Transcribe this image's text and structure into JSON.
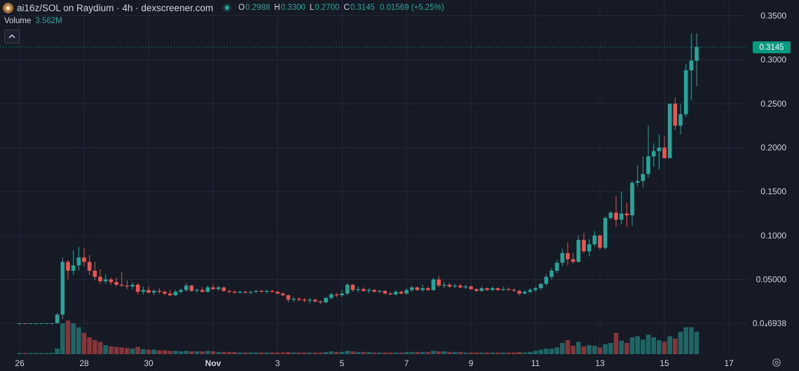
{
  "header": {
    "pair_label": "ai16z/SOL on Raydium · 4h · dexscreener.com",
    "o_label": "O",
    "o_value": "0.2988",
    "h_label": "H",
    "h_value": "0.3300",
    "l_label": "L",
    "l_value": "0.2700",
    "c_label": "C",
    "c_value": "0.3145",
    "change": "0.01569 (+5.25%)"
  },
  "volume": {
    "label": "Volume",
    "value": "3.562M"
  },
  "collapse_icon": "chevron-up",
  "last_price_label": "0.3145",
  "settings_icon": "gear",
  "colors": {
    "background": "#161a25",
    "up": "#26a69a",
    "down": "#ef5350",
    "grid": "#23273a",
    "text": "#d1d4dc"
  },
  "chart_data": {
    "type": "candlestick",
    "interval": "4h",
    "y_tick_labels": [
      "0.3500",
      "0.3000",
      "0.2500",
      "0.2000",
      "0.1500",
      "0.1000",
      "0.05000",
      "0.0₄6938"
    ],
    "y_tick_values": [
      0.35,
      0.3,
      0.25,
      0.2,
      0.15,
      0.1,
      0.05,
      0.0
    ],
    "ylim": [
      -0.035,
      0.36
    ],
    "x_tick_labels": [
      "26",
      "28",
      "30",
      "Nov",
      "3",
      "5",
      "7",
      "9",
      "11",
      "13",
      "15",
      "17"
    ],
    "x_tick_positions": [
      0,
      12,
      24,
      36,
      48,
      60,
      72,
      84,
      96,
      108,
      120,
      132
    ],
    "grid": true,
    "last_price": 0.3145,
    "candles": [
      [
        0.0,
        0.0002,
        -0.0002,
        0.0001,
        2
      ],
      [
        0.0001,
        0.0002,
        -0.0001,
        0.0,
        2
      ],
      [
        0.0,
        0.0002,
        -0.0002,
        0.0001,
        2
      ],
      [
        0.0001,
        0.0002,
        0.0,
        0.0001,
        2
      ],
      [
        0.0001,
        0.0002,
        -0.0001,
        0.0001,
        2
      ],
      [
        0.0001,
        0.0002,
        0.0,
        0.0002,
        2
      ],
      [
        0.0001,
        0.0003,
        0.0,
        0.0002,
        2
      ],
      [
        0.0002,
        0.012,
        0.0,
        0.01,
        10
      ],
      [
        0.01,
        0.075,
        0.005,
        0.07,
        55
      ],
      [
        0.07,
        0.072,
        0.05,
        0.06,
        60
      ],
      [
        0.06,
        0.083,
        0.055,
        0.066,
        55
      ],
      [
        0.066,
        0.087,
        0.06,
        0.075,
        48
      ],
      [
        0.075,
        0.086,
        0.065,
        0.07,
        38
      ],
      [
        0.07,
        0.078,
        0.055,
        0.06,
        30
      ],
      [
        0.06,
        0.07,
        0.049,
        0.053,
        25
      ],
      [
        0.053,
        0.062,
        0.045,
        0.048,
        22
      ],
      [
        0.048,
        0.056,
        0.045,
        0.05,
        16
      ],
      [
        0.05,
        0.052,
        0.044,
        0.047,
        14
      ],
      [
        0.047,
        0.052,
        0.042,
        0.044,
        13
      ],
      [
        0.044,
        0.058,
        0.042,
        0.043,
        12
      ],
      [
        0.043,
        0.049,
        0.039,
        0.042,
        11
      ],
      [
        0.042,
        0.047,
        0.039,
        0.044,
        10
      ],
      [
        0.044,
        0.046,
        0.033,
        0.036,
        13
      ],
      [
        0.036,
        0.042,
        0.033,
        0.038,
        9
      ],
      [
        0.038,
        0.042,
        0.034,
        0.035,
        8
      ],
      [
        0.035,
        0.039,
        0.032,
        0.037,
        8
      ],
      [
        0.037,
        0.04,
        0.034,
        0.036,
        7
      ],
      [
        0.036,
        0.038,
        0.032,
        0.034,
        7
      ],
      [
        0.034,
        0.038,
        0.031,
        0.032,
        6
      ],
      [
        0.032,
        0.038,
        0.031,
        0.036,
        6
      ],
      [
        0.036,
        0.04,
        0.034,
        0.038,
        5
      ],
      [
        0.038,
        0.046,
        0.036,
        0.043,
        6
      ],
      [
        0.043,
        0.044,
        0.036,
        0.037,
        5
      ],
      [
        0.037,
        0.04,
        0.035,
        0.038,
        5
      ],
      [
        0.038,
        0.041,
        0.035,
        0.036,
        5
      ],
      [
        0.036,
        0.043,
        0.035,
        0.041,
        6
      ],
      [
        0.041,
        0.045,
        0.038,
        0.039,
        5
      ],
      [
        0.039,
        0.043,
        0.037,
        0.041,
        4
      ],
      [
        0.041,
        0.042,
        0.036,
        0.037,
        4
      ],
      [
        0.037,
        0.038,
        0.034,
        0.036,
        4
      ],
      [
        0.036,
        0.038,
        0.034,
        0.035,
        4
      ],
      [
        0.035,
        0.037,
        0.034,
        0.036,
        3
      ],
      [
        0.036,
        0.037,
        0.034,
        0.035,
        3
      ],
      [
        0.035,
        0.037,
        0.033,
        0.036,
        3
      ],
      [
        0.036,
        0.038,
        0.034,
        0.037,
        3
      ],
      [
        0.037,
        0.038,
        0.035,
        0.036,
        3
      ],
      [
        0.036,
        0.038,
        0.034,
        0.037,
        3
      ],
      [
        0.037,
        0.038,
        0.035,
        0.036,
        3
      ],
      [
        0.036,
        0.037,
        0.033,
        0.034,
        3
      ],
      [
        0.034,
        0.035,
        0.031,
        0.032,
        3
      ],
      [
        0.032,
        0.033,
        0.024,
        0.027,
        4
      ],
      [
        0.027,
        0.03,
        0.024,
        0.028,
        3
      ],
      [
        0.028,
        0.03,
        0.025,
        0.027,
        3
      ],
      [
        0.027,
        0.029,
        0.024,
        0.026,
        3
      ],
      [
        0.026,
        0.029,
        0.023,
        0.027,
        3
      ],
      [
        0.027,
        0.028,
        0.024,
        0.025,
        3
      ],
      [
        0.025,
        0.026,
        0.022,
        0.024,
        3
      ],
      [
        0.024,
        0.03,
        0.023,
        0.029,
        4
      ],
      [
        0.029,
        0.035,
        0.027,
        0.033,
        5
      ],
      [
        0.033,
        0.035,
        0.03,
        0.032,
        4
      ],
      [
        0.032,
        0.038,
        0.03,
        0.034,
        4
      ],
      [
        0.034,
        0.046,
        0.032,
        0.044,
        6
      ],
      [
        0.044,
        0.045,
        0.036,
        0.038,
        5
      ],
      [
        0.038,
        0.042,
        0.035,
        0.039,
        4
      ],
      [
        0.039,
        0.041,
        0.036,
        0.037,
        4
      ],
      [
        0.037,
        0.04,
        0.034,
        0.038,
        4
      ],
      [
        0.038,
        0.039,
        0.035,
        0.036,
        3
      ],
      [
        0.036,
        0.038,
        0.034,
        0.037,
        3
      ],
      [
        0.037,
        0.038,
        0.033,
        0.034,
        3
      ],
      [
        0.034,
        0.036,
        0.032,
        0.033,
        3
      ],
      [
        0.033,
        0.038,
        0.032,
        0.036,
        3
      ],
      [
        0.036,
        0.037,
        0.033,
        0.034,
        3
      ],
      [
        0.034,
        0.04,
        0.033,
        0.038,
        4
      ],
      [
        0.038,
        0.043,
        0.036,
        0.041,
        4
      ],
      [
        0.041,
        0.042,
        0.037,
        0.038,
        4
      ],
      [
        0.038,
        0.044,
        0.036,
        0.04,
        4
      ],
      [
        0.04,
        0.042,
        0.037,
        0.038,
        4
      ],
      [
        0.038,
        0.052,
        0.037,
        0.05,
        6
      ],
      [
        0.05,
        0.054,
        0.041,
        0.043,
        5
      ],
      [
        0.043,
        0.047,
        0.04,
        0.044,
        5
      ],
      [
        0.044,
        0.046,
        0.04,
        0.042,
        4
      ],
      [
        0.042,
        0.045,
        0.04,
        0.043,
        4
      ],
      [
        0.043,
        0.045,
        0.04,
        0.041,
        4
      ],
      [
        0.041,
        0.044,
        0.039,
        0.042,
        3
      ],
      [
        0.042,
        0.043,
        0.038,
        0.039,
        3
      ],
      [
        0.039,
        0.04,
        0.036,
        0.037,
        3
      ],
      [
        0.037,
        0.042,
        0.036,
        0.04,
        3
      ],
      [
        0.04,
        0.041,
        0.037,
        0.038,
        3
      ],
      [
        0.038,
        0.042,
        0.037,
        0.04,
        3
      ],
      [
        0.04,
        0.041,
        0.037,
        0.038,
        3
      ],
      [
        0.038,
        0.042,
        0.037,
        0.039,
        3
      ],
      [
        0.039,
        0.041,
        0.037,
        0.038,
        3
      ],
      [
        0.038,
        0.04,
        0.036,
        0.037,
        3
      ],
      [
        0.037,
        0.038,
        0.032,
        0.034,
        4
      ],
      [
        0.034,
        0.038,
        0.033,
        0.036,
        3
      ],
      [
        0.036,
        0.04,
        0.034,
        0.038,
        4
      ],
      [
        0.038,
        0.042,
        0.036,
        0.04,
        6
      ],
      [
        0.04,
        0.046,
        0.038,
        0.045,
        8
      ],
      [
        0.045,
        0.056,
        0.043,
        0.053,
        10
      ],
      [
        0.053,
        0.063,
        0.05,
        0.06,
        10
      ],
      [
        0.06,
        0.072,
        0.057,
        0.069,
        12
      ],
      [
        0.069,
        0.085,
        0.065,
        0.08,
        20
      ],
      [
        0.08,
        0.092,
        0.066,
        0.073,
        25
      ],
      [
        0.073,
        0.08,
        0.068,
        0.07,
        15
      ],
      [
        0.07,
        0.1,
        0.069,
        0.095,
        22
      ],
      [
        0.095,
        0.103,
        0.08,
        0.082,
        14
      ],
      [
        0.082,
        0.096,
        0.076,
        0.09,
        16
      ],
      [
        0.09,
        0.105,
        0.087,
        0.1,
        15
      ],
      [
        0.1,
        0.101,
        0.084,
        0.086,
        12
      ],
      [
        0.086,
        0.122,
        0.084,
        0.12,
        18
      ],
      [
        0.12,
        0.128,
        0.118,
        0.126,
        20
      ],
      [
        0.126,
        0.145,
        0.11,
        0.118,
        38
      ],
      [
        0.118,
        0.15,
        0.113,
        0.125,
        24
      ],
      [
        0.125,
        0.137,
        0.11,
        0.123,
        20
      ],
      [
        0.123,
        0.162,
        0.111,
        0.16,
        30
      ],
      [
        0.16,
        0.18,
        0.156,
        0.162,
        32
      ],
      [
        0.162,
        0.19,
        0.155,
        0.17,
        26
      ],
      [
        0.17,
        0.225,
        0.166,
        0.19,
        35
      ],
      [
        0.19,
        0.205,
        0.178,
        0.196,
        30
      ],
      [
        0.196,
        0.215,
        0.175,
        0.2,
        25
      ],
      [
        0.2,
        0.213,
        0.19,
        0.188,
        22
      ],
      [
        0.188,
        0.25,
        0.188,
        0.25,
        32
      ],
      [
        0.25,
        0.257,
        0.22,
        0.225,
        28
      ],
      [
        0.225,
        0.25,
        0.215,
        0.238,
        40
      ],
      [
        0.238,
        0.295,
        0.235,
        0.288,
        48
      ],
      [
        0.288,
        0.33,
        0.254,
        0.299,
        48
      ],
      [
        0.2988,
        0.33,
        0.27,
        0.3145,
        40
      ]
    ]
  }
}
